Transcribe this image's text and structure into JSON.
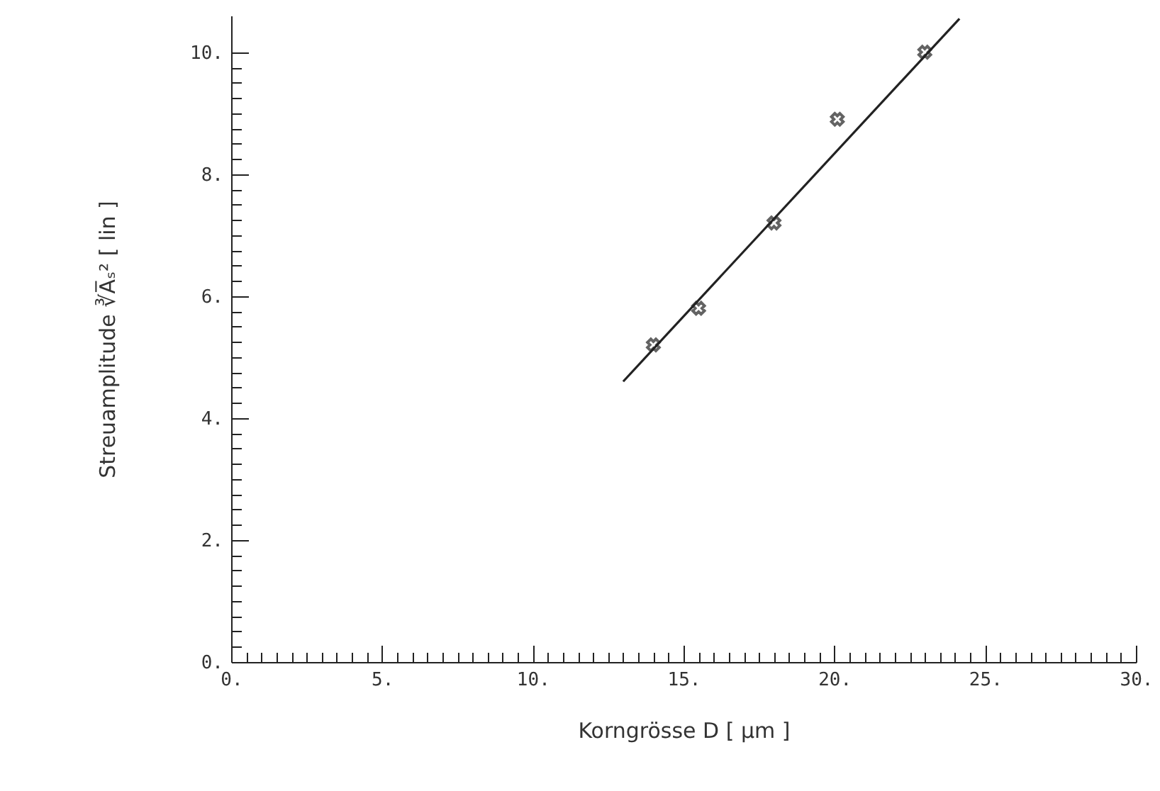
{
  "chart_data": {
    "type": "scatter",
    "xlabel": "Korngrösse  D            [  μm  ]",
    "ylabel": "Streuamplitude ∛A̅ₛ²     [ lin ]",
    "grid": false,
    "xlim": [
      0,
      30
    ],
    "ylim": [
      0,
      10.6
    ],
    "xticks": [
      {
        "value": 0,
        "label": "0."
      },
      {
        "value": 0.5,
        "label": null
      },
      {
        "value": 1,
        "label": null
      },
      {
        "value": 1.5,
        "label": null
      },
      {
        "value": 2,
        "label": null
      },
      {
        "value": 2.5,
        "label": null
      },
      {
        "value": 3,
        "label": null
      },
      {
        "value": 3.5,
        "label": null
      },
      {
        "value": 4,
        "label": null
      },
      {
        "value": 4.5,
        "label": null
      },
      {
        "value": 5,
        "label": "5."
      },
      {
        "value": 5.5,
        "label": null
      },
      {
        "value": 6,
        "label": null
      },
      {
        "value": 6.5,
        "label": null
      },
      {
        "value": 7,
        "label": null
      },
      {
        "value": 7.5,
        "label": null
      },
      {
        "value": 8,
        "label": null
      },
      {
        "value": 8.5,
        "label": null
      },
      {
        "value": 9,
        "label": null
      },
      {
        "value": 9.5,
        "label": null
      },
      {
        "value": 10,
        "label": "10."
      },
      {
        "value": 10.5,
        "label": null
      },
      {
        "value": 11,
        "label": null
      },
      {
        "value": 11.5,
        "label": null
      },
      {
        "value": 12,
        "label": null
      },
      {
        "value": 12.5,
        "label": null
      },
      {
        "value": 13,
        "label": null
      },
      {
        "value": 13.5,
        "label": null
      },
      {
        "value": 14,
        "label": null
      },
      {
        "value": 14.5,
        "label": null
      },
      {
        "value": 15,
        "label": "15."
      },
      {
        "value": 15.5,
        "label": null
      },
      {
        "value": 16,
        "label": null
      },
      {
        "value": 16.5,
        "label": null
      },
      {
        "value": 17,
        "label": null
      },
      {
        "value": 17.5,
        "label": null
      },
      {
        "value": 18,
        "label": null
      },
      {
        "value": 18.5,
        "label": null
      },
      {
        "value": 19,
        "label": null
      },
      {
        "value": 19.5,
        "label": null
      },
      {
        "value": 20,
        "label": "20."
      },
      {
        "value": 20.5,
        "label": null
      },
      {
        "value": 21,
        "label": null
      },
      {
        "value": 21.5,
        "label": null
      },
      {
        "value": 22,
        "label": null
      },
      {
        "value": 22.5,
        "label": null
      },
      {
        "value": 23,
        "label": null
      },
      {
        "value": 23.5,
        "label": null
      },
      {
        "value": 24,
        "label": null
      },
      {
        "value": 24.5,
        "label": null
      },
      {
        "value": 25,
        "label": "25."
      },
      {
        "value": 25.5,
        "label": null
      },
      {
        "value": 26,
        "label": null
      },
      {
        "value": 26.5,
        "label": null
      },
      {
        "value": 27,
        "label": null
      },
      {
        "value": 27.5,
        "label": null
      },
      {
        "value": 28,
        "label": null
      },
      {
        "value": 28.5,
        "label": null
      },
      {
        "value": 29,
        "label": null
      },
      {
        "value": 29.5,
        "label": null
      },
      {
        "value": 30,
        "label": "30."
      }
    ],
    "yticks": [
      {
        "value": 0,
        "label": "0."
      },
      {
        "value": 0.25,
        "label": null
      },
      {
        "value": 0.5,
        "label": null
      },
      {
        "value": 0.75,
        "label": null
      },
      {
        "value": 1,
        "label": null
      },
      {
        "value": 1.25,
        "label": null
      },
      {
        "value": 1.5,
        "label": null
      },
      {
        "value": 1.75,
        "label": null
      },
      {
        "value": 2,
        "label": "2."
      },
      {
        "value": 2.25,
        "label": null
      },
      {
        "value": 2.5,
        "label": null
      },
      {
        "value": 2.75,
        "label": null
      },
      {
        "value": 3,
        "label": null
      },
      {
        "value": 3.25,
        "label": null
      },
      {
        "value": 3.5,
        "label": null
      },
      {
        "value": 3.75,
        "label": null
      },
      {
        "value": 4,
        "label": "4."
      },
      {
        "value": 4.25,
        "label": null
      },
      {
        "value": 4.5,
        "label": null
      },
      {
        "value": 4.75,
        "label": null
      },
      {
        "value": 5,
        "label": null
      },
      {
        "value": 5.25,
        "label": null
      },
      {
        "value": 5.5,
        "label": null
      },
      {
        "value": 5.75,
        "label": null
      },
      {
        "value": 6,
        "label": "6."
      },
      {
        "value": 6.25,
        "label": null
      },
      {
        "value": 6.5,
        "label": null
      },
      {
        "value": 6.75,
        "label": null
      },
      {
        "value": 7,
        "label": null
      },
      {
        "value": 7.25,
        "label": null
      },
      {
        "value": 7.5,
        "label": null
      },
      {
        "value": 7.75,
        "label": null
      },
      {
        "value": 8,
        "label": "8."
      },
      {
        "value": 8.25,
        "label": null
      },
      {
        "value": 8.5,
        "label": null
      },
      {
        "value": 8.75,
        "label": null
      },
      {
        "value": 9,
        "label": null
      },
      {
        "value": 9.25,
        "label": null
      },
      {
        "value": 9.5,
        "label": null
      },
      {
        "value": 9.75,
        "label": null
      },
      {
        "value": 10,
        "label": "10."
      }
    ],
    "series": [
      {
        "type": "scatter",
        "marker": "cross",
        "color": "#222222",
        "x": [
          14.0,
          15.5,
          18.0,
          20.1,
          23.0
        ],
        "values": [
          5.2,
          5.8,
          7.2,
          8.9,
          10.0
        ]
      },
      {
        "type": "line",
        "color": "#222222",
        "line_style": "solid",
        "x": [
          13.0,
          24.15
        ],
        "values": [
          4.6,
          10.55
        ]
      }
    ]
  }
}
